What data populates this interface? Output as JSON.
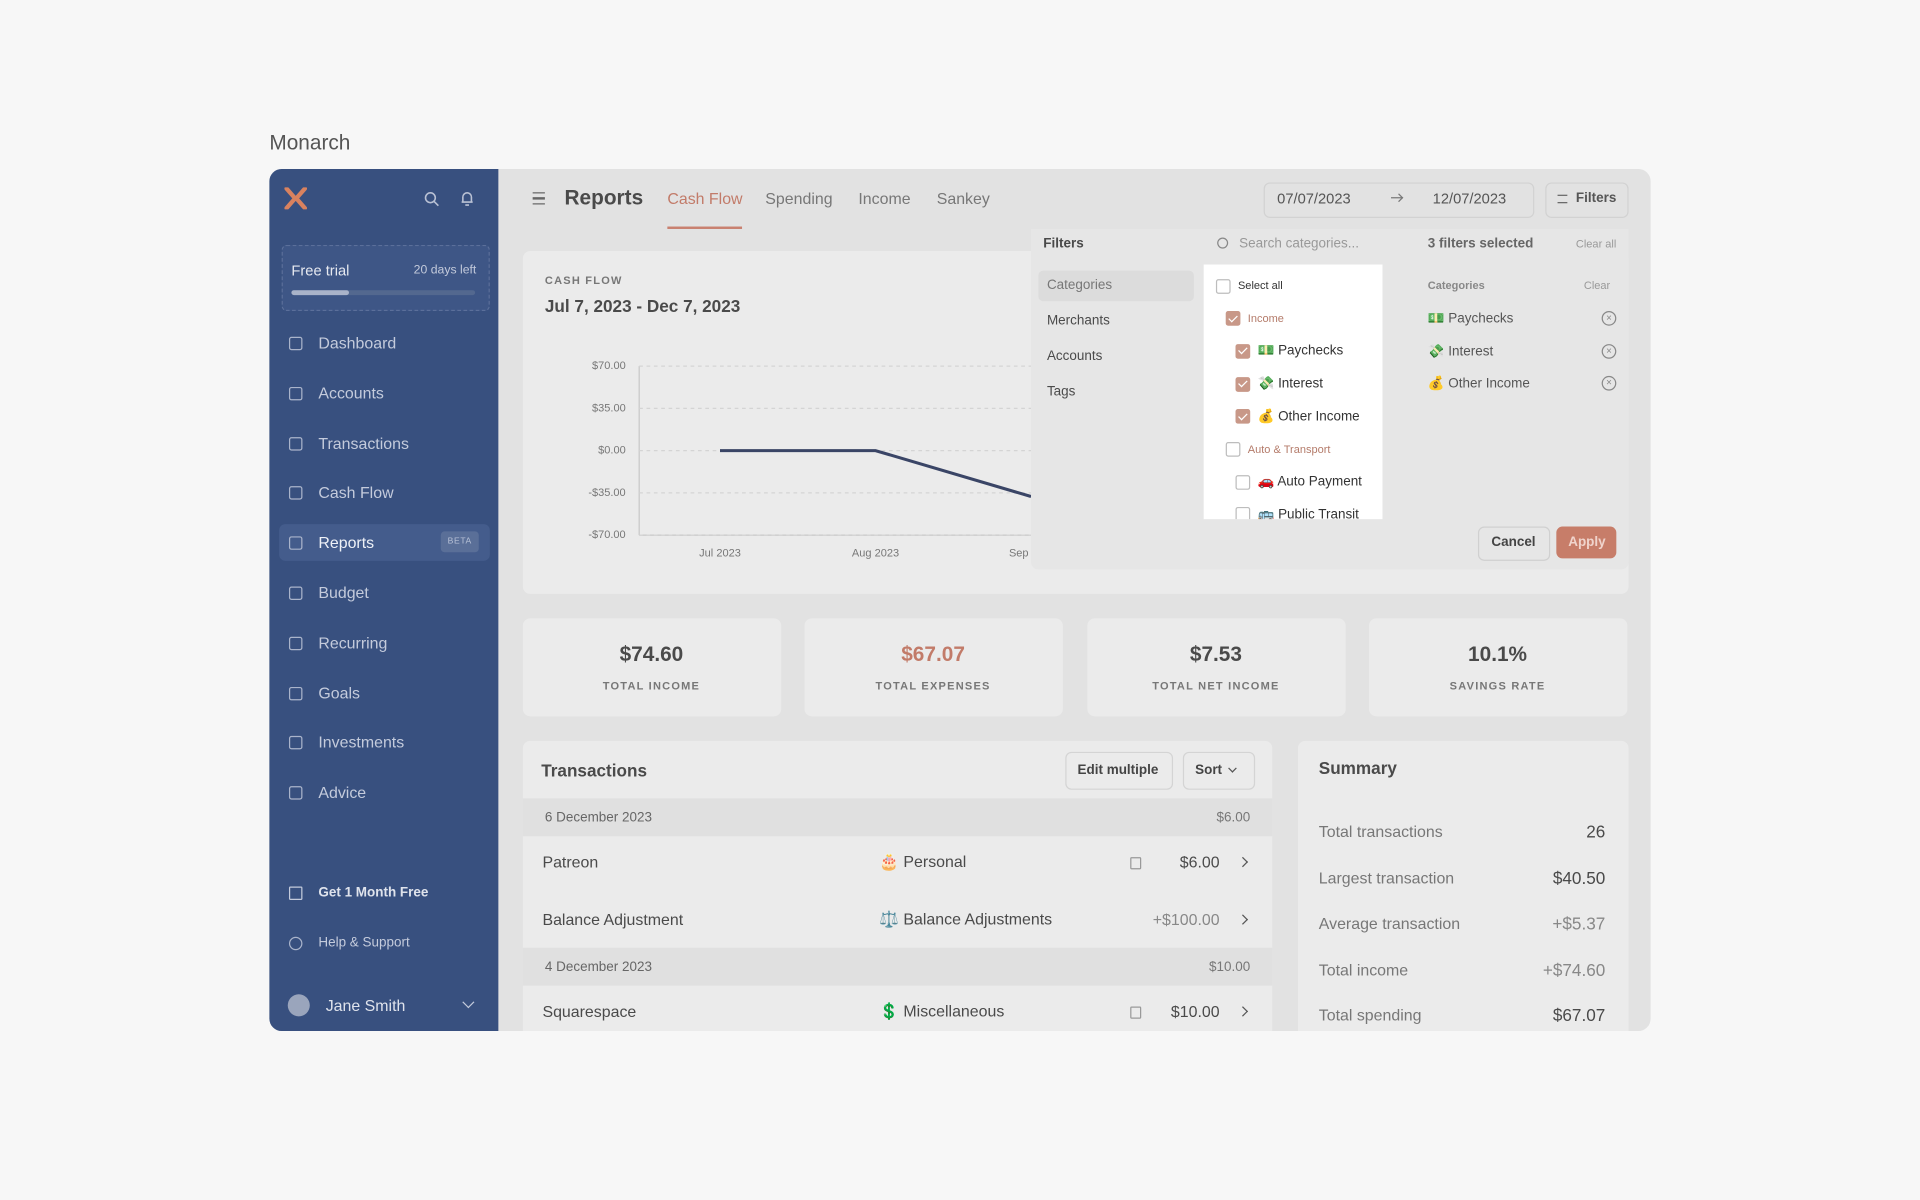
{
  "brand": "Monarch",
  "sidebar": {
    "trial": "Free trial",
    "days_left": "20 days left",
    "nav": [
      "Dashboard",
      "Accounts",
      "Transactions",
      "Cash Flow",
      "Reports",
      "Budget",
      "Recurring",
      "Goals",
      "Investments",
      "Advice"
    ],
    "beta": "BETA",
    "promo": "Get 1 Month Free",
    "help": "Help & Support",
    "user": "Jane Smith"
  },
  "header": {
    "title": "Reports",
    "tabs": [
      "Cash Flow",
      "Spending",
      "Income",
      "Sankey"
    ],
    "date_from": "07/07/2023",
    "date_to": "12/07/2023",
    "filters": "Filters"
  },
  "report": {
    "eyebrow": "CASH FLOW",
    "range": "Jul 7, 2023 - Dec 7, 2023"
  },
  "chart_data": {
    "type": "line",
    "categories": [
      "Jul 2023",
      "Aug 2023",
      "Sep"
    ],
    "values": [
      0,
      0,
      -38
    ],
    "color": "#3a4566",
    "ylim": [
      -70,
      70
    ],
    "yticks": [
      {
        "value": 70,
        "label": "$70.00"
      },
      {
        "value": 35,
        "label": "$35.00"
      },
      {
        "value": 0,
        "label": "$0.00"
      },
      {
        "value": -35,
        "label": "-$35.00"
      },
      {
        "value": -70,
        "label": "-$70.00"
      }
    ],
    "grid": true
  },
  "stats": [
    {
      "value": "$74.60",
      "label": "TOTAL INCOME"
    },
    {
      "value": "$67.07",
      "label": "TOTAL EXPENSES"
    },
    {
      "value": "$7.53",
      "label": "TOTAL NET INCOME"
    },
    {
      "value": "10.1%",
      "label": "SAVINGS RATE"
    }
  ],
  "transactions": {
    "title": "Transactions",
    "edit": "Edit multiple",
    "sort": "Sort",
    "groups": [
      {
        "date": "6 December 2023",
        "total": "$6.00",
        "rows": [
          {
            "merchant": "Patreon",
            "category": "🎂 Personal",
            "amount": "$6.00",
            "icon": true
          },
          {
            "merchant": "Balance Adjustment",
            "category": "⚖️ Balance Adjustments",
            "amount": "+$100.00",
            "icon": false
          }
        ]
      },
      {
        "date": "4 December 2023",
        "total": "$10.00",
        "rows": [
          {
            "merchant": "Squarespace",
            "category": "💲 Miscellaneous",
            "amount": "$10.00",
            "icon": true
          }
        ]
      }
    ]
  },
  "summary": {
    "title": "Summary",
    "rows": [
      [
        "Total transactions",
        "26"
      ],
      [
        "Largest transaction",
        "$40.50"
      ],
      [
        "Average transaction",
        "+$5.37"
      ],
      [
        "Total income",
        "+$74.60"
      ],
      [
        "Total spending",
        "$67.07"
      ]
    ]
  },
  "filters": {
    "title": "Filters",
    "search": "Search categories...",
    "selected": "3 filters selected",
    "clear_all": "Clear all",
    "tabs": [
      "Categories",
      "Merchants",
      "Accounts",
      "Tags"
    ],
    "options": [
      {
        "label": "Select all",
        "checked": false,
        "level": 0
      },
      {
        "label": "Income",
        "checked": true,
        "level": 1
      },
      {
        "label": "💵 Paychecks",
        "checked": true,
        "level": 2
      },
      {
        "label": "💸 Interest",
        "checked": true,
        "level": 2
      },
      {
        "label": "💰 Other Income",
        "checked": true,
        "level": 2
      },
      {
        "label": "Auto & Transport",
        "checked": false,
        "level": 1
      },
      {
        "label": "🚗 Auto Payment",
        "checked": false,
        "level": 2
      },
      {
        "label": "🚌 Public Transit",
        "checked": false,
        "level": 2
      }
    ],
    "chosen_title": "Categories",
    "clear": "Clear",
    "chosen": [
      "💵 Paychecks",
      "💸 Interest",
      "💰 Other Income"
    ],
    "cancel": "Cancel",
    "apply": "Apply"
  }
}
